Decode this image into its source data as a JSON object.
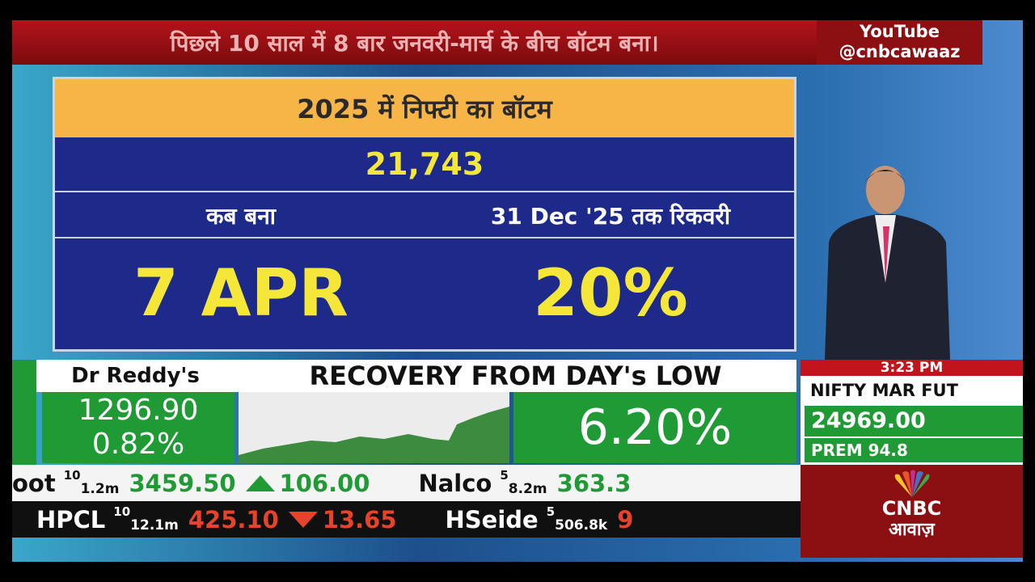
{
  "top_ticker": {
    "text": "पिछले 10 साल में 8 बार जनवरी-मार्च के बीच बॉटम बना।"
  },
  "social": {
    "platform": "YouTube",
    "handle": "@cnbcawaaz"
  },
  "panel": {
    "title": "2025 में निफ्टी का बॉटम",
    "value": "21,743",
    "left_label": "कब बना",
    "right_label": "31 Dec '25 तक रिकवरी",
    "left_value": "7 APR",
    "right_value": "20%"
  },
  "stock": {
    "name": "Dr Reddy's",
    "headline": "RECOVERY FROM DAY's LOW",
    "price": "1296.90",
    "change": "0.82%",
    "recovery": "6.20%"
  },
  "market_box": {
    "time": "3:23 PM",
    "instrument": "NIFTY MAR FUT",
    "price": "24969.00",
    "premium": "PREM 94.8"
  },
  "ticker_rows": [
    [
      {
        "name": "oot",
        "lot": "10",
        "volume": "1.2m",
        "price": "3459.50",
        "change": "106.00"
      },
      {
        "name": "Nalco",
        "lot": "5",
        "volume": "8.2m",
        "price": "363.3"
      }
    ],
    [
      {
        "name": "HPCL",
        "lot": "10",
        "volume": "12.1m",
        "price": "425.10",
        "change": "13.65"
      },
      {
        "name": "HSeide",
        "lot": "5",
        "volume": "506.8k",
        "price": "9"
      }
    ]
  ],
  "logo": {
    "brand": "CNBC",
    "sub": "आवाज़"
  }
}
